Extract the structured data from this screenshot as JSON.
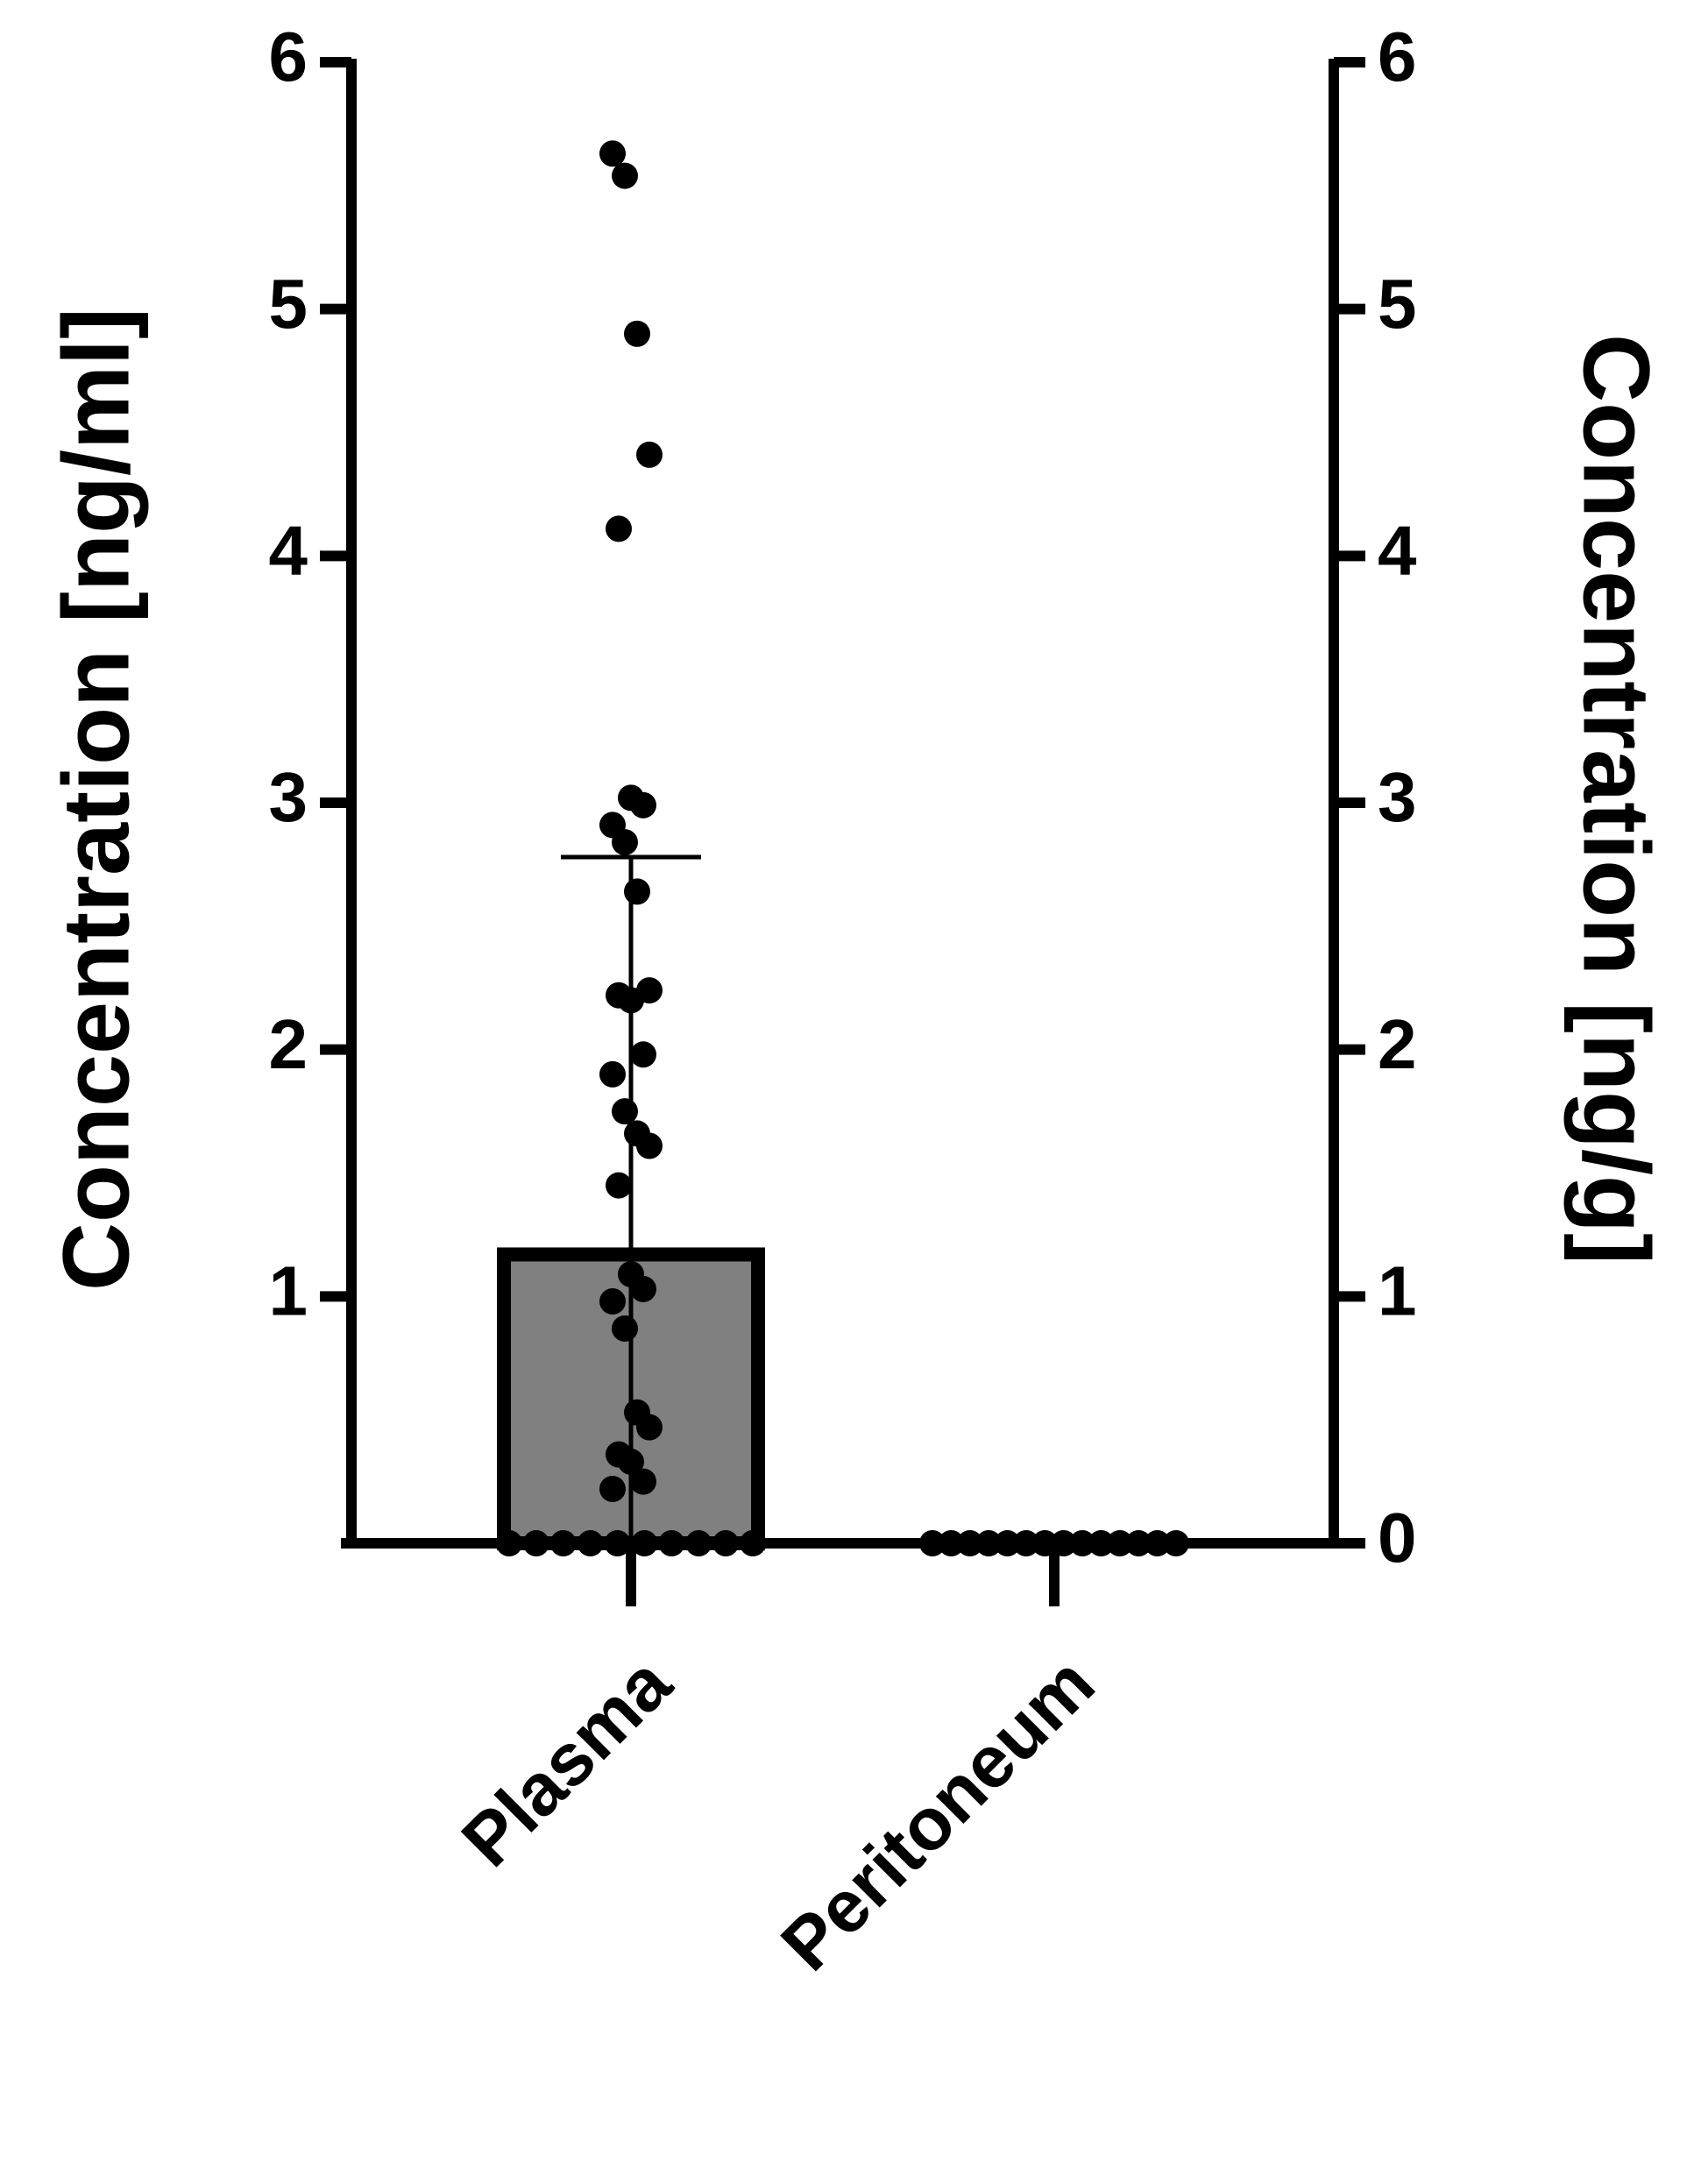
{
  "chart_data": {
    "type": "bar",
    "categories": [
      "Plasma",
      "Peritoneum"
    ],
    "values": [
      1.17,
      0
    ],
    "errors": [
      1.61,
      null
    ],
    "points": [
      [
        5.63,
        5.54,
        4.9,
        4.41,
        4.11,
        3.02,
        2.99,
        2.91,
        2.84,
        2.64,
        2.24,
        2.22,
        2.2,
        1.98,
        1.9,
        1.75,
        1.66,
        1.61,
        1.45,
        1.09,
        1.03,
        0.98,
        0.87,
        0.53,
        0.47,
        0.36,
        0.33,
        0.25,
        0.22,
        0,
        0,
        0,
        0,
        0,
        0,
        0,
        0,
        0,
        0
      ],
      [
        0,
        0,
        0,
        0,
        0,
        0,
        0,
        0,
        0,
        0,
        0,
        0,
        0,
        0
      ]
    ],
    "color": "#808080",
    "point_color": "#000000",
    "ylabel": "Concentration [ng/ml]",
    "y2label": "Concentration [ng/g]",
    "ylim": [
      0,
      6
    ],
    "yticks": [
      1,
      2,
      3,
      4,
      5,
      6
    ],
    "y2lim": [
      0,
      6
    ],
    "y2ticks": [
      0,
      1,
      2,
      3,
      4,
      5,
      6
    ]
  }
}
